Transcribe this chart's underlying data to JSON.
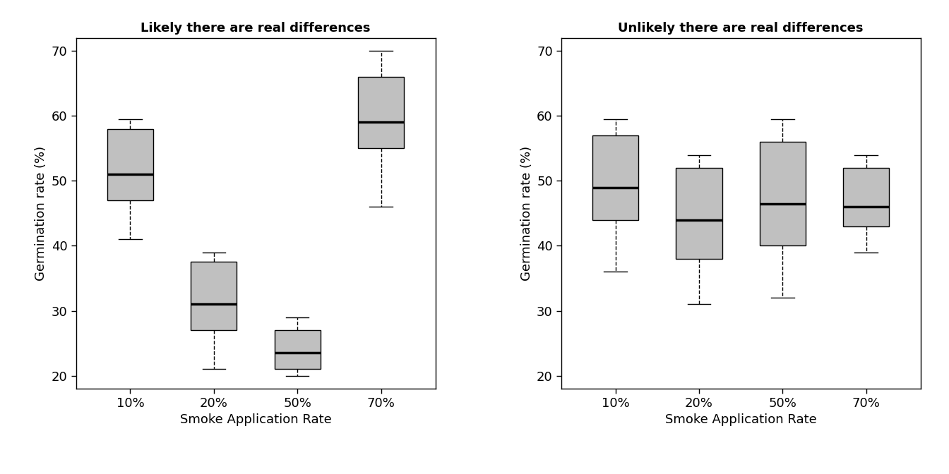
{
  "left_title": "Likely there are real differences",
  "right_title": "Unlikely there are real differences",
  "xlabel": "Smoke Application Rate",
  "ylabel": "Germination rate (%)",
  "categories": [
    "10%",
    "20%",
    "50%",
    "70%"
  ],
  "ylim": [
    18,
    72
  ],
  "yticks": [
    20,
    30,
    40,
    50,
    60,
    70
  ],
  "left_boxes": [
    {
      "whislo": 41,
      "q1": 47,
      "med": 51,
      "q3": 58,
      "whishi": 59.5
    },
    {
      "whislo": 21,
      "q1": 27,
      "med": 31,
      "q3": 37.5,
      "whishi": 39
    },
    {
      "whislo": 20,
      "q1": 21,
      "med": 23.5,
      "q3": 27,
      "whishi": 29
    },
    {
      "whislo": 46,
      "q1": 55,
      "med": 59,
      "q3": 66,
      "whishi": 70
    }
  ],
  "right_boxes": [
    {
      "whislo": 36,
      "q1": 44,
      "med": 49,
      "q3": 57,
      "whishi": 59.5
    },
    {
      "whislo": 31,
      "q1": 38,
      "med": 44,
      "q3": 52,
      "whishi": 54
    },
    {
      "whislo": 32,
      "q1": 40,
      "med": 46.5,
      "q3": 56,
      "whishi": 59.5
    },
    {
      "whislo": 39,
      "q1": 43,
      "med": 46,
      "q3": 52,
      "whishi": 54
    }
  ],
  "box_color": "#C0C0C0",
  "median_color": "#000000",
  "whisker_color": "#000000",
  "background_color": "#ffffff",
  "title_fontsize": 13,
  "label_fontsize": 13,
  "tick_fontsize": 13,
  "figsize": [
    13.44,
    6.72
  ],
  "dpi": 100
}
